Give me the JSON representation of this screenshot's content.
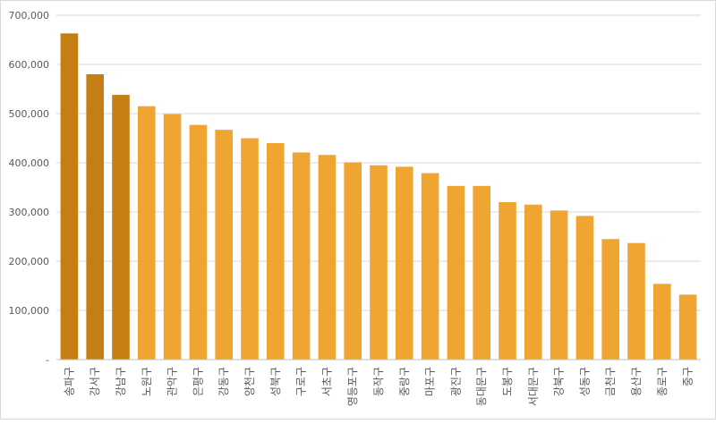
{
  "chart_data": {
    "type": "bar",
    "title": "",
    "xlabel": "",
    "ylabel": "",
    "ylim": [
      0,
      700000
    ],
    "yticks": [
      0,
      100000,
      200000,
      300000,
      400000,
      500000,
      600000,
      700000
    ],
    "ytick_labels": [
      "-",
      "100,000",
      "200,000",
      "300,000",
      "400,000",
      "500,000",
      "600,000",
      "700,000"
    ],
    "grid": true,
    "legend": "none",
    "categories": [
      "송파구",
      "강서구",
      "강남구",
      "노원구",
      "관악구",
      "은평구",
      "강동구",
      "양천구",
      "성북구",
      "구로구",
      "서초구",
      "영등포구",
      "동작구",
      "중랑구",
      "마포구",
      "광진구",
      "동대문구",
      "도봉구",
      "서대문구",
      "강북구",
      "성동구",
      "금천구",
      "용산구",
      "종로구",
      "중구"
    ],
    "values": [
      663000,
      580000,
      538000,
      515000,
      499000,
      477000,
      467000,
      450000,
      440000,
      421000,
      416000,
      401000,
      395000,
      392000,
      379000,
      353000,
      353000,
      320000,
      315000,
      303000,
      292000,
      245000,
      237000,
      154000,
      132000
    ],
    "colors": {
      "highlight": "#c57e14",
      "default": "#f0a431",
      "grid": "#d9d9d9",
      "axis": "#bfbfbf",
      "text": "#595959"
    },
    "highlight_count": 3
  }
}
